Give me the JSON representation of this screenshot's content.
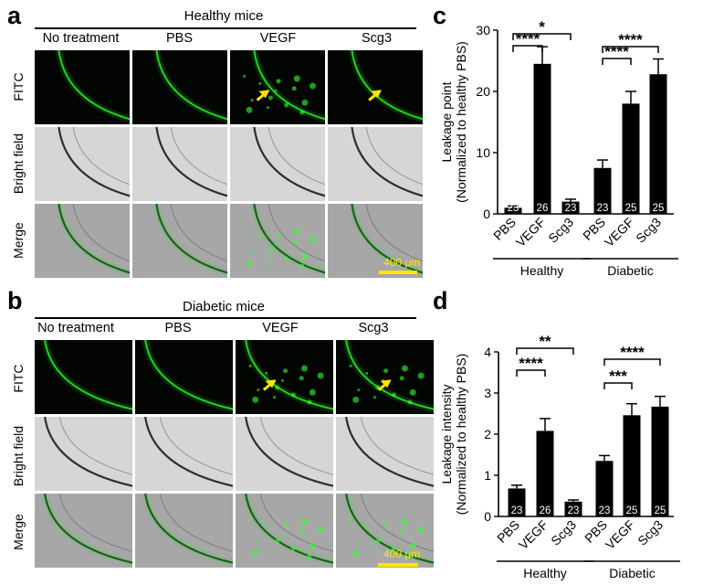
{
  "panel_a": {
    "label": "a",
    "group_title": "Healthy mice",
    "columns": [
      "No treatment",
      "PBS",
      "VEGF",
      "Scg3"
    ],
    "rows": [
      "FITC",
      "Bright field",
      "Merge"
    ],
    "scale_bar": "400 μm"
  },
  "panel_b": {
    "label": "b",
    "group_title": "Diabetic mice",
    "columns": [
      "No treatment",
      "PBS",
      "VEGF",
      "Scg3"
    ],
    "rows": [
      "FITC",
      "Bright field",
      "Merge"
    ],
    "scale_bar": "400 μm"
  },
  "panel_c": {
    "label": "c"
  },
  "panel_d": {
    "label": "d"
  },
  "colors": {
    "fitc": "#22dd22",
    "arrow": "#ffe600",
    "bar": "#000000",
    "brightfield": "#d9d9d9"
  },
  "chart_data": [
    {
      "type": "bar",
      "panel": "c",
      "ylabel": "Leakage point",
      "ylabel2": "(Normalized to healthy PBS)",
      "ylim": [
        0,
        30
      ],
      "yticks": [
        "0",
        "10",
        "20",
        "30"
      ],
      "categories": [
        "PBS",
        "VEGF",
        "Scg3",
        "PBS",
        "VEGF",
        "Scg3"
      ],
      "groups": [
        {
          "name": "Healthy",
          "span": [
            0,
            2
          ]
        },
        {
          "name": "Diabetic",
          "span": [
            3,
            5
          ]
        }
      ],
      "values": [
        1,
        24.5,
        2,
        7.5,
        18,
        22.8
      ],
      "errors": [
        0.3,
        2.8,
        0.4,
        1.3,
        2.0,
        2.5
      ],
      "n_labels": [
        "23",
        "26",
        "23",
        "23",
        "25",
        "25"
      ],
      "significance": [
        {
          "from": 0,
          "to": 1,
          "label": "****"
        },
        {
          "from": 0,
          "to": 2,
          "label": "*"
        },
        {
          "from": 3,
          "to": 4,
          "label": "****"
        },
        {
          "from": 3,
          "to": 5,
          "label": "****"
        }
      ]
    },
    {
      "type": "bar",
      "panel": "d",
      "ylabel": "Leakage intensity",
      "ylabel2": "(Normalized to healthy PBS)",
      "ylim": [
        0,
        4
      ],
      "yticks": [
        "0",
        "1",
        "2",
        "3",
        "4"
      ],
      "categories": [
        "PBS",
        "VEGF",
        "Scg3",
        "PBS",
        "VEGF",
        "Scg3"
      ],
      "groups": [
        {
          "name": "Healthy",
          "span": [
            0,
            2
          ]
        },
        {
          "name": "Diabetic",
          "span": [
            3,
            5
          ]
        }
      ],
      "values": [
        0.68,
        2.08,
        0.36,
        1.35,
        2.46,
        2.67
      ],
      "errors": [
        0.08,
        0.3,
        0.04,
        0.13,
        0.28,
        0.25
      ],
      "n_labels": [
        "23",
        "26",
        "23",
        "23",
        "25",
        "25"
      ],
      "significance": [
        {
          "from": 0,
          "to": 1,
          "label": "****"
        },
        {
          "from": 0,
          "to": 2,
          "label": "**"
        },
        {
          "from": 3,
          "to": 4,
          "label": "***"
        },
        {
          "from": 3,
          "to": 5,
          "label": "****"
        }
      ]
    }
  ]
}
